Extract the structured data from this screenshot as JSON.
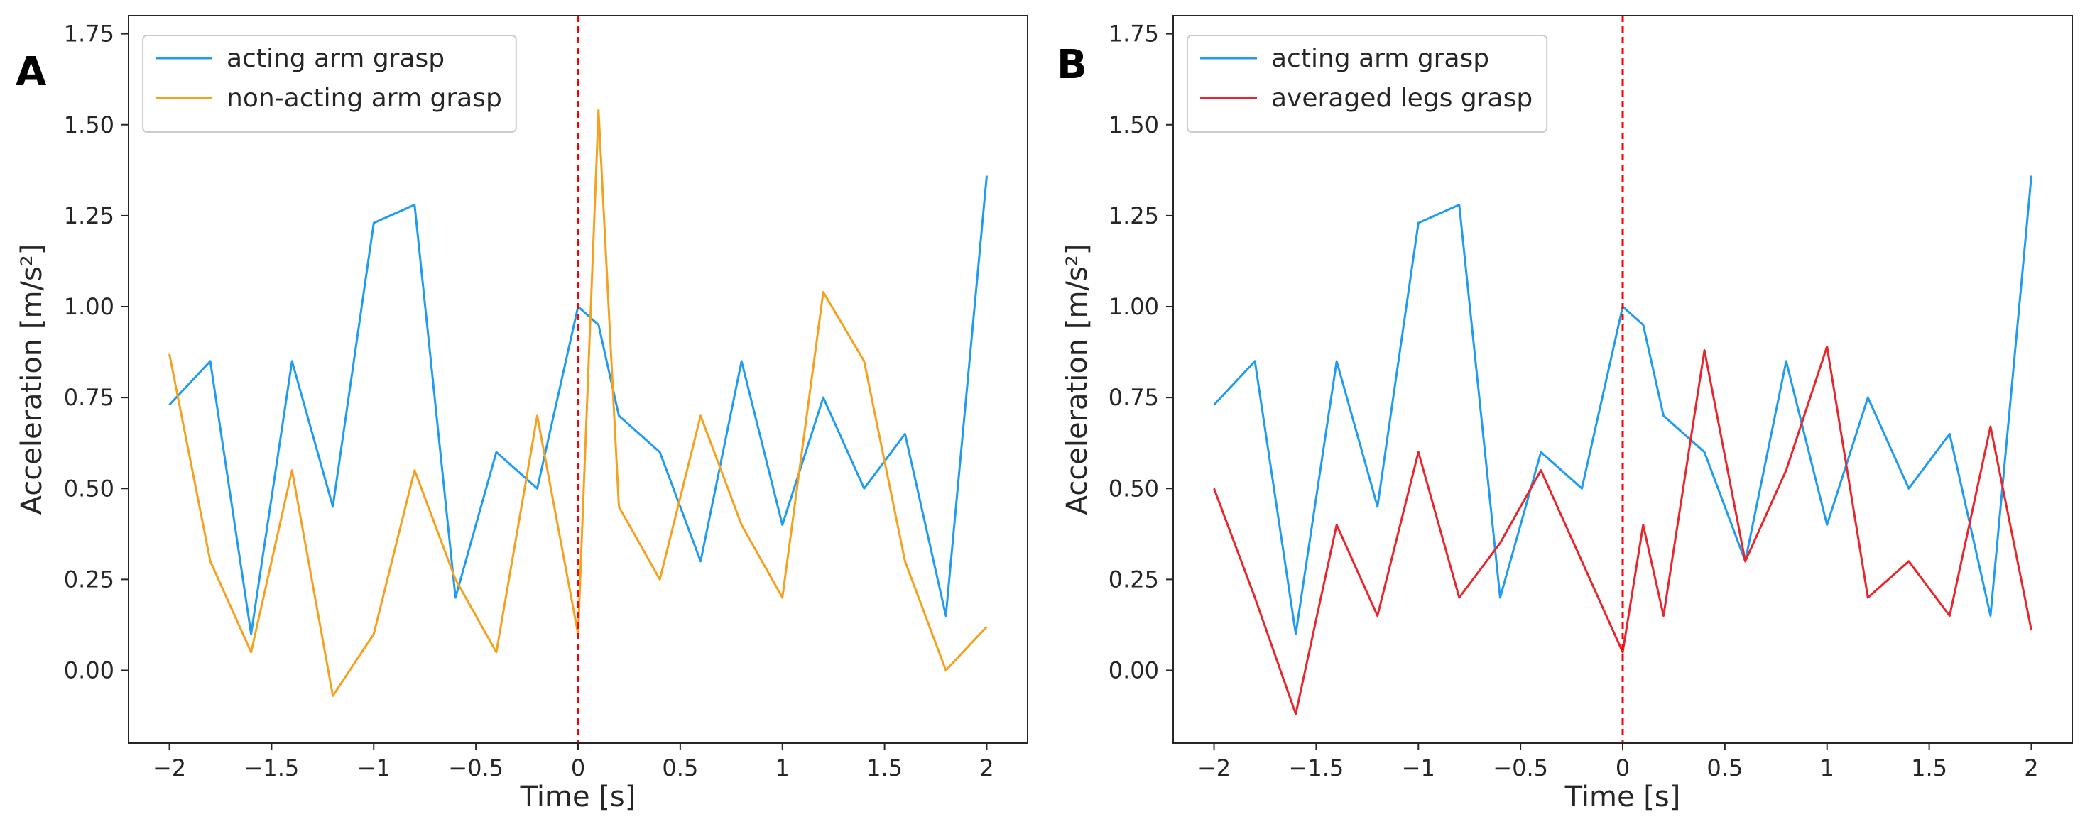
{
  "figure_title": "",
  "chart_data": [
    {
      "type": "line",
      "panel_label": "A",
      "xlabel": "Time [s]",
      "ylabel": "Acceleration [m/s²]",
      "xlim": [
        -2.2,
        2.2
      ],
      "ylim": [
        -0.2,
        1.8
      ],
      "xticks": [
        -2,
        -1.5,
        -1,
        -0.5,
        0,
        0.5,
        1,
        1.5,
        2
      ],
      "xtick_labels": [
        "−2",
        "−1.5",
        "−1",
        "−0.5",
        "0",
        "0.5",
        "1",
        "1.5",
        "2"
      ],
      "yticks": [
        0,
        0.25,
        0.5,
        0.75,
        1,
        1.25,
        1.5,
        1.75
      ],
      "ytick_labels": [
        "0.00",
        "0.25",
        "0.50",
        "0.75",
        "1.00",
        "1.25",
        "1.50",
        "1.75"
      ],
      "grid": false,
      "legend_position": "top-left",
      "vline": {
        "x": 0,
        "color": "#ff0000",
        "style": "dashed"
      },
      "x": [
        -2.0,
        -1.8,
        -1.6,
        -1.4,
        -1.2,
        -1.0,
        -0.8,
        -0.6,
        -0.4,
        -0.2,
        0.0,
        0.1,
        0.2,
        0.4,
        0.6,
        0.8,
        1.0,
        1.2,
        1.4,
        1.6,
        1.8,
        2.0
      ],
      "series": [
        {
          "name": "acting arm grasp",
          "color": "#1f9bf0",
          "values": [
            0.73,
            0.85,
            0.1,
            0.85,
            0.45,
            1.23,
            1.28,
            0.2,
            0.6,
            0.5,
            1.0,
            0.95,
            0.7,
            0.6,
            0.3,
            0.85,
            0.4,
            0.75,
            0.5,
            0.65,
            0.15,
            1.36
          ]
        },
        {
          "name": "non-acting arm grasp",
          "color": "#f5a11e",
          "values": [
            0.87,
            0.3,
            0.05,
            0.55,
            -0.07,
            0.1,
            0.55,
            0.25,
            0.05,
            0.7,
            0.1,
            1.54,
            0.45,
            0.25,
            0.7,
            0.4,
            0.2,
            1.04,
            0.85,
            0.3,
            0.0,
            0.12
          ]
        }
      ]
    },
    {
      "type": "line",
      "panel_label": "B",
      "xlabel": "Time [s]",
      "ylabel": "Acceleration [m/s²]",
      "xlim": [
        -2.2,
        2.2
      ],
      "ylim": [
        -0.2,
        1.8
      ],
      "xticks": [
        -2,
        -1.5,
        -1,
        -0.5,
        0,
        0.5,
        1,
        1.5,
        2
      ],
      "xtick_labels": [
        "−2",
        "−1.5",
        "−1",
        "−0.5",
        "0",
        "0.5",
        "1",
        "1.5",
        "2"
      ],
      "yticks": [
        0,
        0.25,
        0.5,
        0.75,
        1,
        1.25,
        1.5,
        1.75
      ],
      "ytick_labels": [
        "0.00",
        "0.25",
        "0.50",
        "0.75",
        "1.00",
        "1.25",
        "1.50",
        "1.75"
      ],
      "grid": false,
      "legend_position": "top-left",
      "vline": {
        "x": 0,
        "color": "#ff0000",
        "style": "dashed"
      },
      "x": [
        -2.0,
        -1.8,
        -1.6,
        -1.4,
        -1.2,
        -1.0,
        -0.8,
        -0.6,
        -0.4,
        -0.2,
        0.0,
        0.1,
        0.2,
        0.4,
        0.6,
        0.8,
        1.0,
        1.2,
        1.4,
        1.6,
        1.8,
        2.0
      ],
      "series": [
        {
          "name": "acting arm grasp",
          "color": "#1f9bf0",
          "values": [
            0.73,
            0.85,
            0.1,
            0.85,
            0.45,
            1.23,
            1.28,
            0.2,
            0.6,
            0.5,
            1.0,
            0.95,
            0.7,
            0.6,
            0.3,
            0.85,
            0.4,
            0.75,
            0.5,
            0.65,
            0.15,
            1.36
          ]
        },
        {
          "name": "averaged legs grasp",
          "color": "#e8262b",
          "values": [
            0.5,
            0.2,
            -0.12,
            0.4,
            0.15,
            0.6,
            0.2,
            0.35,
            0.55,
            0.3,
            0.05,
            0.4,
            0.15,
            0.88,
            0.3,
            0.55,
            0.89,
            0.2,
            0.3,
            0.15,
            0.67,
            0.11
          ]
        }
      ]
    }
  ]
}
